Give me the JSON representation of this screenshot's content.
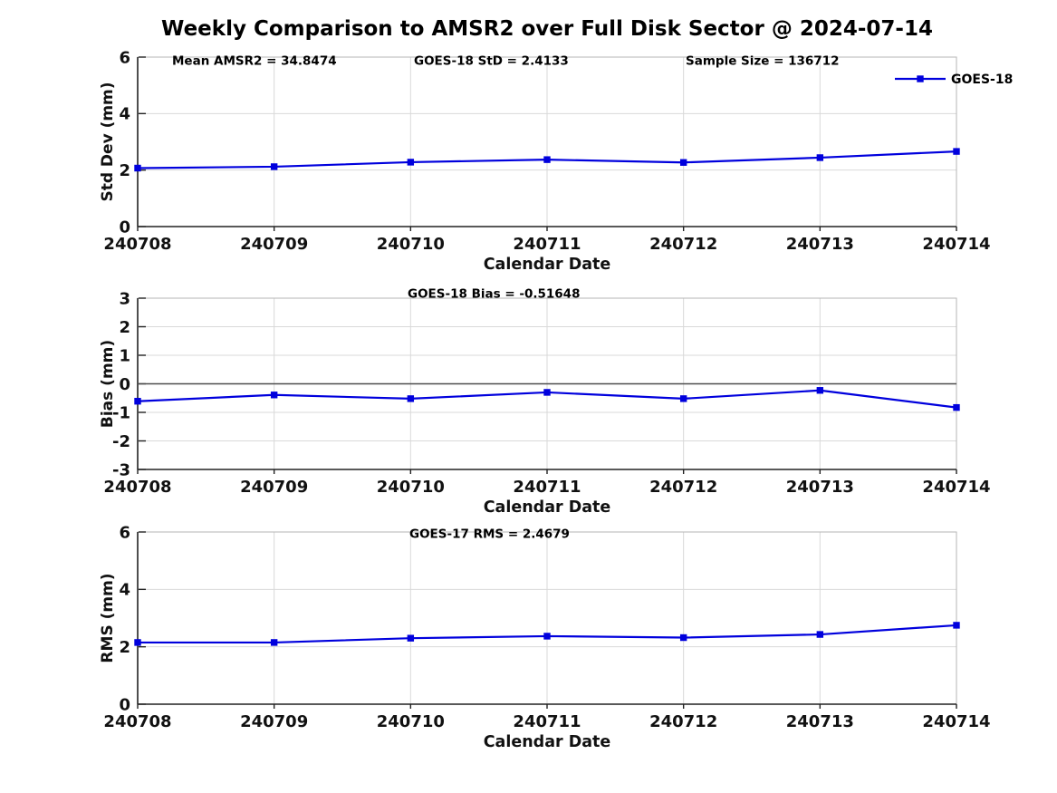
{
  "title": "Weekly Comparison to AMSR2 over Full Disk Sector @ 2024-07-14",
  "legend": {
    "label": "GOES-18"
  },
  "colors": {
    "line": "#0000dd",
    "grid": "#d9d9d9",
    "box": "#b5b5b5",
    "axis": "#222222",
    "zero_line": "#4d4d4d",
    "tick_text": "#111111",
    "annotation_text": "#000000"
  },
  "chart_data": [
    {
      "type": "line",
      "name": "std-dev-vs-date",
      "annotations": [
        "Mean AMSR2 = 34.8474",
        "GOES-18 StD = 2.4133",
        "Sample Size = 136712"
      ],
      "categories": [
        "240708",
        "240709",
        "240710",
        "240711",
        "240712",
        "240713",
        "240714"
      ],
      "series": [
        {
          "name": "GOES-18",
          "values": [
            2.07,
            2.12,
            2.28,
            2.37,
            2.27,
            2.44,
            2.66
          ]
        }
      ],
      "xlabel": "Calendar Date",
      "ylabel": "Std Dev (mm)",
      "ylim": [
        0,
        6
      ],
      "yticks": [
        0,
        2,
        4,
        6
      ],
      "grid": true,
      "legend_position": "top-right",
      "zero_line": false
    },
    {
      "type": "line",
      "name": "bias-vs-date",
      "annotations": [
        "GOES-18 Bias  = -0.51648"
      ],
      "categories": [
        "240708",
        "240709",
        "240710",
        "240711",
        "240712",
        "240713",
        "240714"
      ],
      "series": [
        {
          "name": "GOES-18",
          "values": [
            -0.61,
            -0.39,
            -0.52,
            -0.3,
            -0.52,
            -0.23,
            -0.83
          ]
        }
      ],
      "xlabel": "Calendar Date",
      "ylabel": "Bias (mm)",
      "ylim": [
        -3,
        3
      ],
      "yticks": [
        3,
        2,
        1,
        0,
        -1,
        -2,
        -3
      ],
      "grid": true,
      "legend_position": "none",
      "zero_line": true
    },
    {
      "type": "line",
      "name": "rms-vs-date",
      "annotations": [
        "GOES-17 RMS = 2.4679"
      ],
      "categories": [
        "240708",
        "240709",
        "240710",
        "240711",
        "240712",
        "240713",
        "240714"
      ],
      "series": [
        {
          "name": "GOES-18",
          "values": [
            2.15,
            2.15,
            2.3,
            2.37,
            2.32,
            2.43,
            2.75
          ]
        }
      ],
      "xlabel": "Calendar Date",
      "ylabel": "RMS (mm)",
      "ylim": [
        0,
        6
      ],
      "yticks": [
        0,
        2,
        4,
        6
      ],
      "grid": true,
      "legend_position": "none",
      "zero_line": false
    }
  ]
}
